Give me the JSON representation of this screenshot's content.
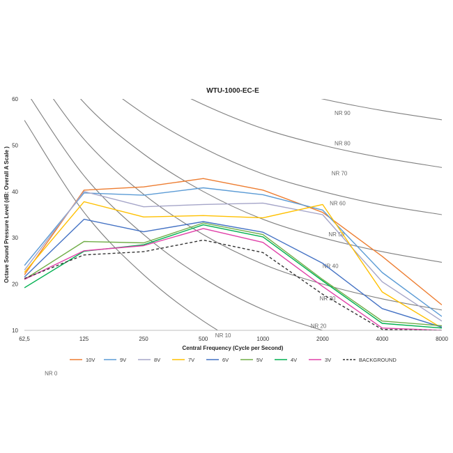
{
  "chart_data": {
    "type": "line",
    "title": "WTU-1000-EC-E",
    "xlabel": "Central Frequency  (Cycle per Second)",
    "ylabel": "Octave Sound Pressure Level (dB: Overall A Scale )",
    "categories": [
      "62,5",
      "125",
      "250",
      "500",
      "1000",
      "2000",
      "4000",
      "8000"
    ],
    "ylim": [
      10,
      60
    ],
    "yticks": [
      10,
      20,
      30,
      40,
      50,
      60
    ],
    "grid": false,
    "legend_position": "bottom",
    "series": [
      {
        "name": "10V",
        "color": "#ED7D31",
        "dash": "",
        "values": [
          22,
          40.3,
          41,
          42.8,
          40.3,
          35.5,
          26,
          15.5
        ]
      },
      {
        "name": "9V",
        "color": "#5B9BD5",
        "dash": "",
        "values": [
          24,
          39.7,
          39.2,
          40.8,
          39.3,
          36,
          22.5,
          13
        ]
      },
      {
        "name": "8V",
        "color": "#A5A5C8",
        "dash": "",
        "values": [
          23,
          40,
          36.7,
          37.2,
          37.5,
          35,
          20.5,
          12
        ]
      },
      {
        "name": "7V",
        "color": "#FFC000",
        "dash": "",
        "values": [
          22.5,
          37.8,
          34.5,
          34.8,
          34.3,
          37.2,
          18.3,
          10.5
        ]
      },
      {
        "name": "6V",
        "color": "#4472C4",
        "dash": "",
        "values": [
          21.5,
          34,
          31.3,
          33.5,
          31.2,
          24.5,
          14.7,
          10.7
        ]
      },
      {
        "name": "5V",
        "color": "#70AD47",
        "dash": "",
        "values": [
          21,
          29.2,
          28.9,
          33.2,
          30.7,
          21,
          12,
          11
        ]
      },
      {
        "name": "4V",
        "color": "#00B050",
        "dash": "",
        "values": [
          19.2,
          27.1,
          28.5,
          32.8,
          30.2,
          20.7,
          11.5,
          10.5
        ]
      },
      {
        "name": "3V",
        "color": "#E040A8",
        "dash": "",
        "values": [
          21,
          27.2,
          28.3,
          32,
          29,
          19.5,
          10.5,
          10
        ]
      },
      {
        "name": "BACKGROUND",
        "color": "#333333",
        "dash": "4,3",
        "values": [
          21.2,
          26.3,
          27,
          29.5,
          26.8,
          17.8,
          10.2,
          10
        ]
      }
    ],
    "nr_curves": [
      {
        "label": "NR 0",
        "values": [
          55.4,
          35.5,
          22,
          12,
          4.8,
          0,
          -3.5,
          -6.1
        ],
        "label_at": [
          0.34,
          0.3
        ]
      },
      {
        "label": "NR 10",
        "values": [
          62.2,
          43.4,
          30.7,
          21.3,
          14.5,
          10,
          6.6,
          4.2
        ],
        "label_at": [
          3.2,
          8.5
        ]
      },
      {
        "label": "NR 20",
        "values": [
          69,
          51.3,
          39.4,
          30.7,
          24.3,
          20,
          16.8,
          14.4
        ],
        "label_at": [
          4.8,
          10.5
        ]
      },
      {
        "label": "NR 30",
        "values": [
          75.8,
          59.2,
          48.1,
          40,
          34,
          30,
          27,
          24.7
        ],
        "label_at": [
          4.95,
          16.5
        ]
      },
      {
        "label": "NR 40",
        "values": [
          82.6,
          67.1,
          56.8,
          49.4,
          43.8,
          40,
          37.1,
          35
        ],
        "label_at": [
          5.0,
          23.5
        ]
      },
      {
        "label": "NR 50",
        "values": [
          89.4,
          75,
          65.5,
          58.8,
          53.6,
          50,
          47.3,
          45.2
        ],
        "label_at": [
          5.1,
          30.3
        ]
      },
      {
        "label": "NR 60",
        "values": [
          96.2,
          82.9,
          74.2,
          68.1,
          63.4,
          60,
          57.5,
          55.5
        ],
        "label_at": [
          5.12,
          37
        ]
      },
      {
        "label": "NR 70",
        "values": [
          103,
          90.8,
          82.9,
          77.5,
          73.2,
          70,
          67.6,
          65.8
        ],
        "label_at": [
          5.15,
          43.5
        ]
      },
      {
        "label": "NR 80",
        "values": [
          109.7,
          98.7,
          91.6,
          86.8,
          83.1,
          80,
          77.8,
          76.1
        ],
        "label_at": [
          5.2,
          50
        ]
      },
      {
        "label": "NR 90",
        "values": [
          116.6,
          106.6,
          100.3,
          96.2,
          92.9,
          90,
          87.9,
          86.4
        ],
        "label_at": [
          5.2,
          56.5
        ]
      }
    ]
  }
}
